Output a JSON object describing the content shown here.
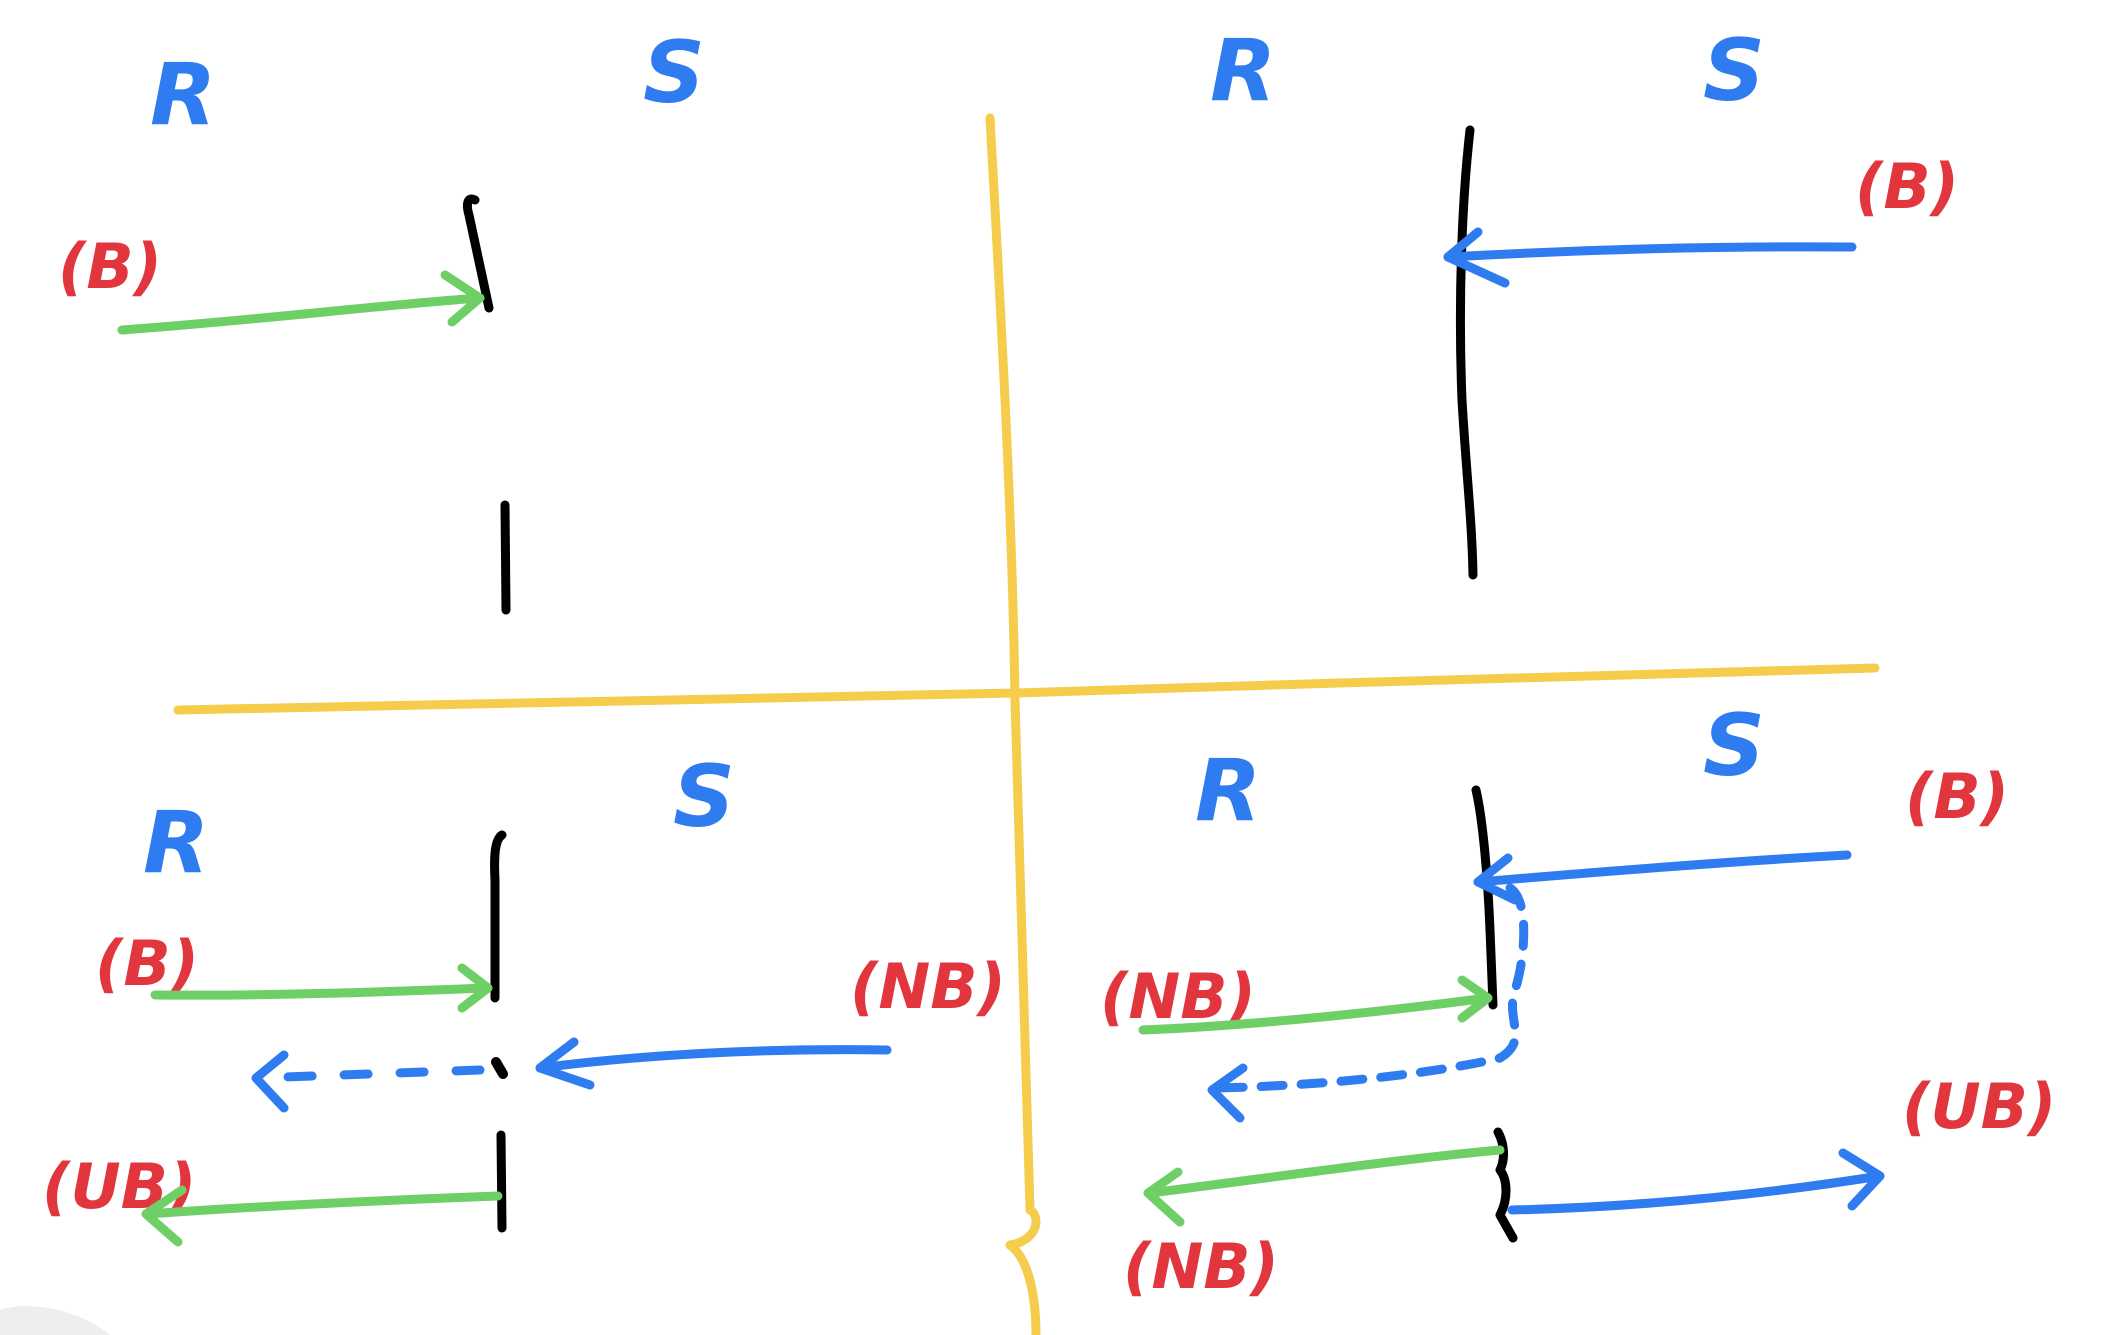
{
  "colors": {
    "divider": "#f6cc4d",
    "timeline": "#000000",
    "label_blue": "#2f7bf0",
    "label_red": "#e2363f",
    "green_arrow": "#6ecf67",
    "blue_arrow": "#2f7bf0"
  },
  "quadrants": {
    "top_left": {
      "receiver": "R",
      "sender": "S",
      "tag_receive": "(B)"
    },
    "top_right": {
      "receiver": "R",
      "sender": "S",
      "tag_send": "(B)"
    },
    "bottom_left": {
      "receiver": "R",
      "sender": "S",
      "tag_receive": "(B)",
      "tag_send": "(NB)",
      "tag_reply": "(UB)"
    },
    "bottom_right": {
      "receiver": "R",
      "sender": "S",
      "tag_send": "(B)",
      "tag_receive": "(NB)",
      "tag_reply_left": "(NB)",
      "tag_reply_right": "(UB)"
    }
  }
}
